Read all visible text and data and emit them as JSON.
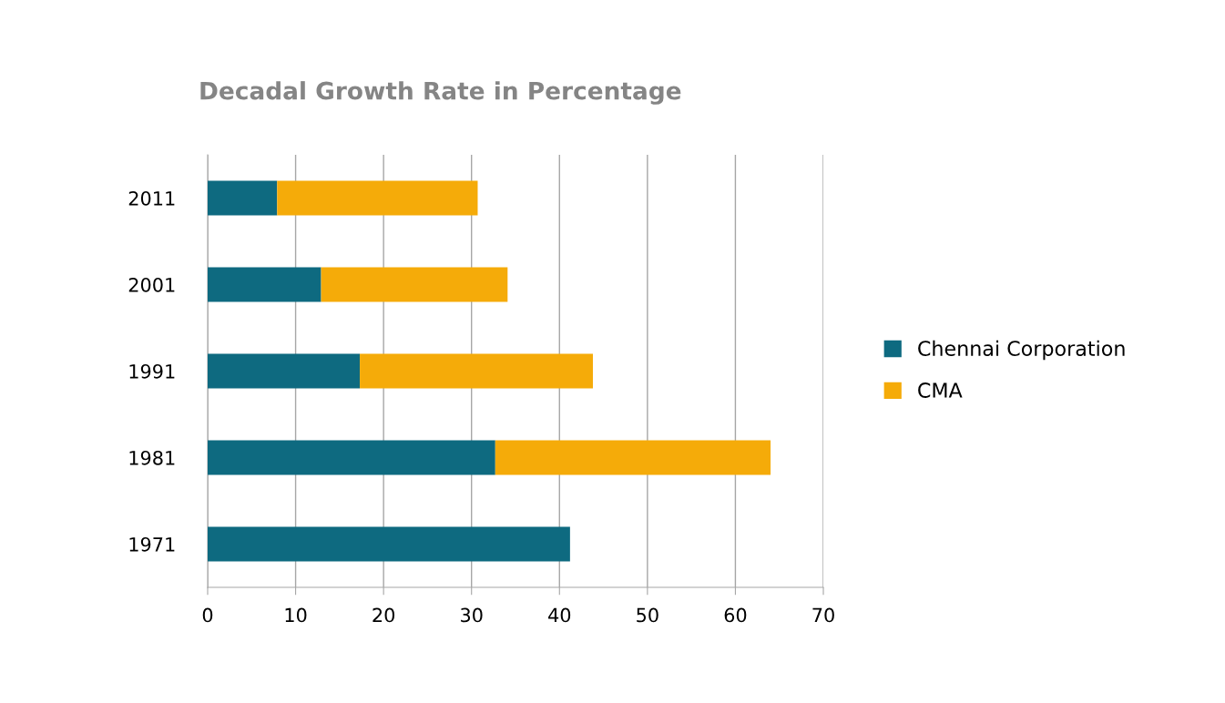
{
  "chart_data": {
    "type": "bar",
    "orientation": "horizontal",
    "stacked": true,
    "title": "Decadal Growth Rate in Percentage",
    "categories": [
      "2011",
      "2001",
      "1991",
      "1981",
      "1971"
    ],
    "series": [
      {
        "name": "Chennai Corporation",
        "color": "#0e6a80",
        "values": [
          7.9,
          12.9,
          17.3,
          32.7,
          41.2
        ]
      },
      {
        "name": "CMA",
        "color": "#f5ab09",
        "values": [
          22.8,
          21.2,
          26.5,
          31.3,
          null
        ]
      }
    ],
    "xlim": [
      0,
      70
    ],
    "xticks": [
      0,
      10,
      20,
      30,
      40,
      50,
      60,
      70
    ],
    "grid": "x",
    "legend": "right"
  }
}
